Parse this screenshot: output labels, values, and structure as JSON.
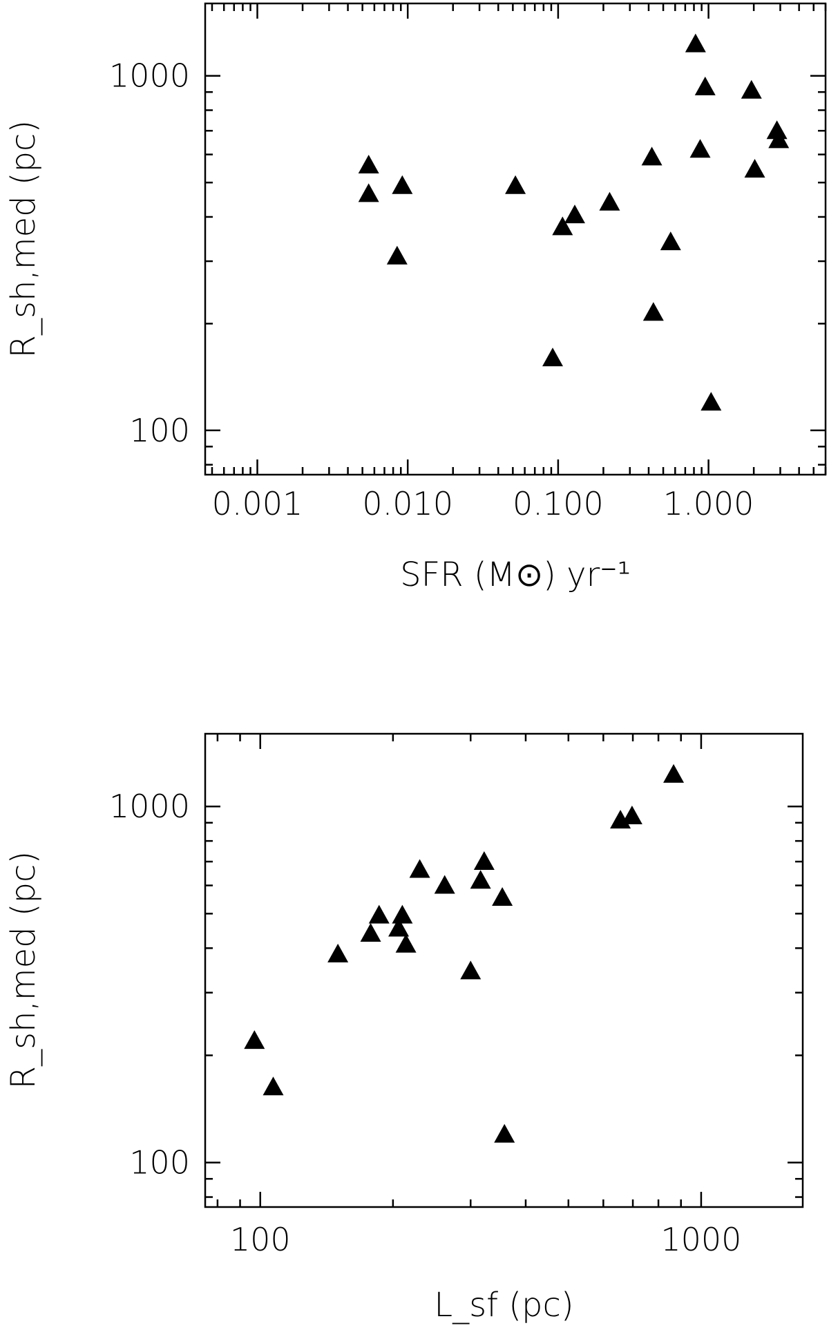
{
  "chart_data": [
    {
      "type": "scatter",
      "xlabel": "SFR (M⊙) yr⁻¹",
      "ylabel": "R_sh,med (pc)",
      "xscale": "log",
      "yscale": "log",
      "xlim": [
        0.00045,
        6.0
      ],
      "ylim": [
        75,
        1600
      ],
      "x_ticks": [
        "0.001",
        "0.010",
        "0.100",
        "1.000"
      ],
      "y_ticks": [
        "100",
        "1000"
      ],
      "marker": "filled-triangle",
      "x": [
        0.0055,
        0.0055,
        0.0085,
        0.0092,
        0.052,
        0.092,
        0.107,
        0.129,
        0.22,
        0.42,
        0.43,
        0.56,
        0.82,
        0.88,
        0.95,
        1.04,
        1.93,
        2.03,
        2.85,
        2.93
      ],
      "y": [
        560,
        465,
        310,
        490,
        490,
        160,
        375,
        405,
        440,
        590,
        215,
        340,
        1230,
        620,
        930,
        120,
        910,
        545,
        700,
        660
      ]
    },
    {
      "type": "scatter",
      "xlabel": "L_sf (pc)",
      "ylabel": "R_sh,med (pc)",
      "xscale": "log",
      "yscale": "log",
      "xlim": [
        75,
        1700
      ],
      "ylim": [
        75,
        1600
      ],
      "x_ticks": [
        "100",
        "1000"
      ],
      "y_ticks": [
        "100",
        "1000"
      ],
      "marker": "filled-triangle",
      "x": [
        97,
        107,
        150,
        178,
        186,
        206,
        210,
        214,
        230,
        262,
        300,
        316,
        322,
        354,
        358,
        656,
        697,
        866
      ],
      "y": [
        220,
        163,
        385,
        440,
        495,
        455,
        495,
        410,
        665,
        600,
        345,
        620,
        700,
        555,
        120,
        915,
        940,
        1230
      ]
    }
  ]
}
